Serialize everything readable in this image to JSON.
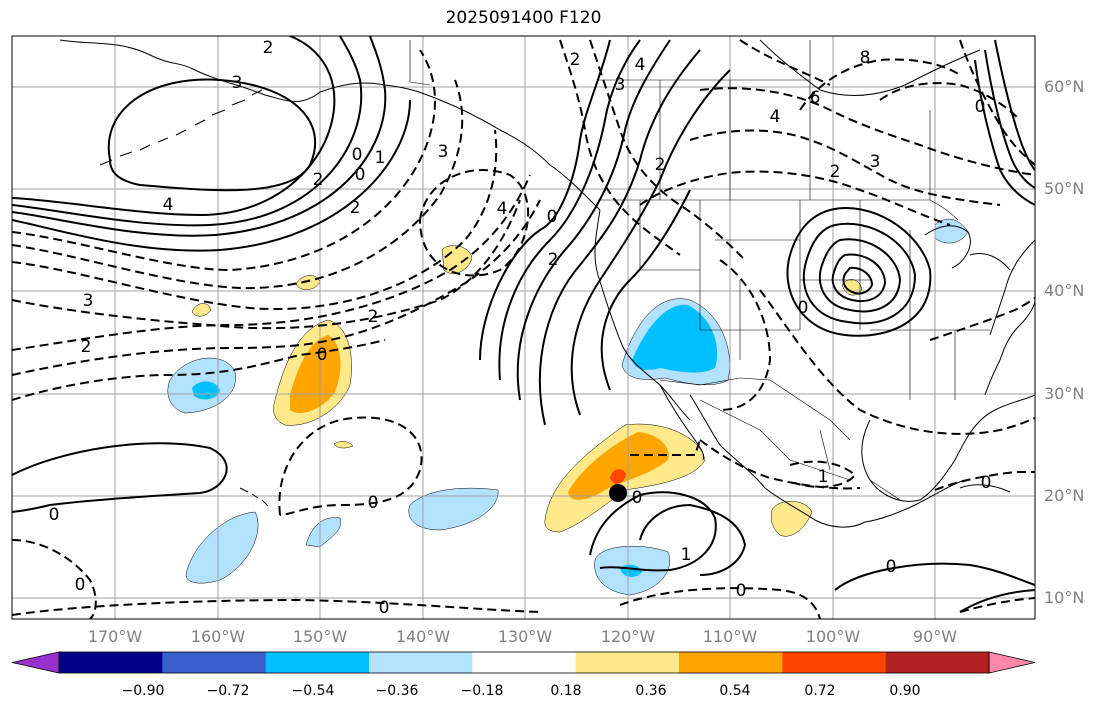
{
  "title": "2025091400 F120",
  "lon_labels": [
    "170°W",
    "160°W",
    "150°W",
    "140°W",
    "130°W",
    "120°W",
    "110°W",
    "100°W",
    "90°W"
  ],
  "lat_labels": [
    "60°N",
    "50°N",
    "40°N",
    "30°N",
    "20°N",
    "10°N"
  ],
  "colorbar": {
    "tick_labels": [
      "−0.90",
      "−0.72",
      "−0.54",
      "−0.36",
      "−0.18",
      "0.18",
      "0.36",
      "0.54",
      "0.72",
      "0.90"
    ],
    "colors": [
      "#9932cc",
      "#00008b",
      "#3a5fcd",
      "#00bfff",
      "#b2e2ff",
      "#ffffff",
      "#ffe98a",
      "#ffa500",
      "#ff4500",
      "#b22222",
      "#ff88aa"
    ]
  },
  "colors": {
    "grid": "#a0a0a0",
    "coast": "#000000",
    "contour": "#000000",
    "marker": "#000000"
  },
  "contour_labels": [
    "2",
    "3",
    "4",
    "2",
    "0",
    "0",
    "1",
    "2",
    "3",
    "4",
    "2",
    "0",
    "2",
    "4",
    "3",
    "2",
    "4",
    "6",
    "8",
    "2",
    "3",
    "0",
    "3",
    "2",
    "2",
    "0",
    "0",
    "1",
    "0",
    "0",
    "0",
    "0",
    "1",
    "0",
    "0",
    "0",
    "0"
  ]
}
